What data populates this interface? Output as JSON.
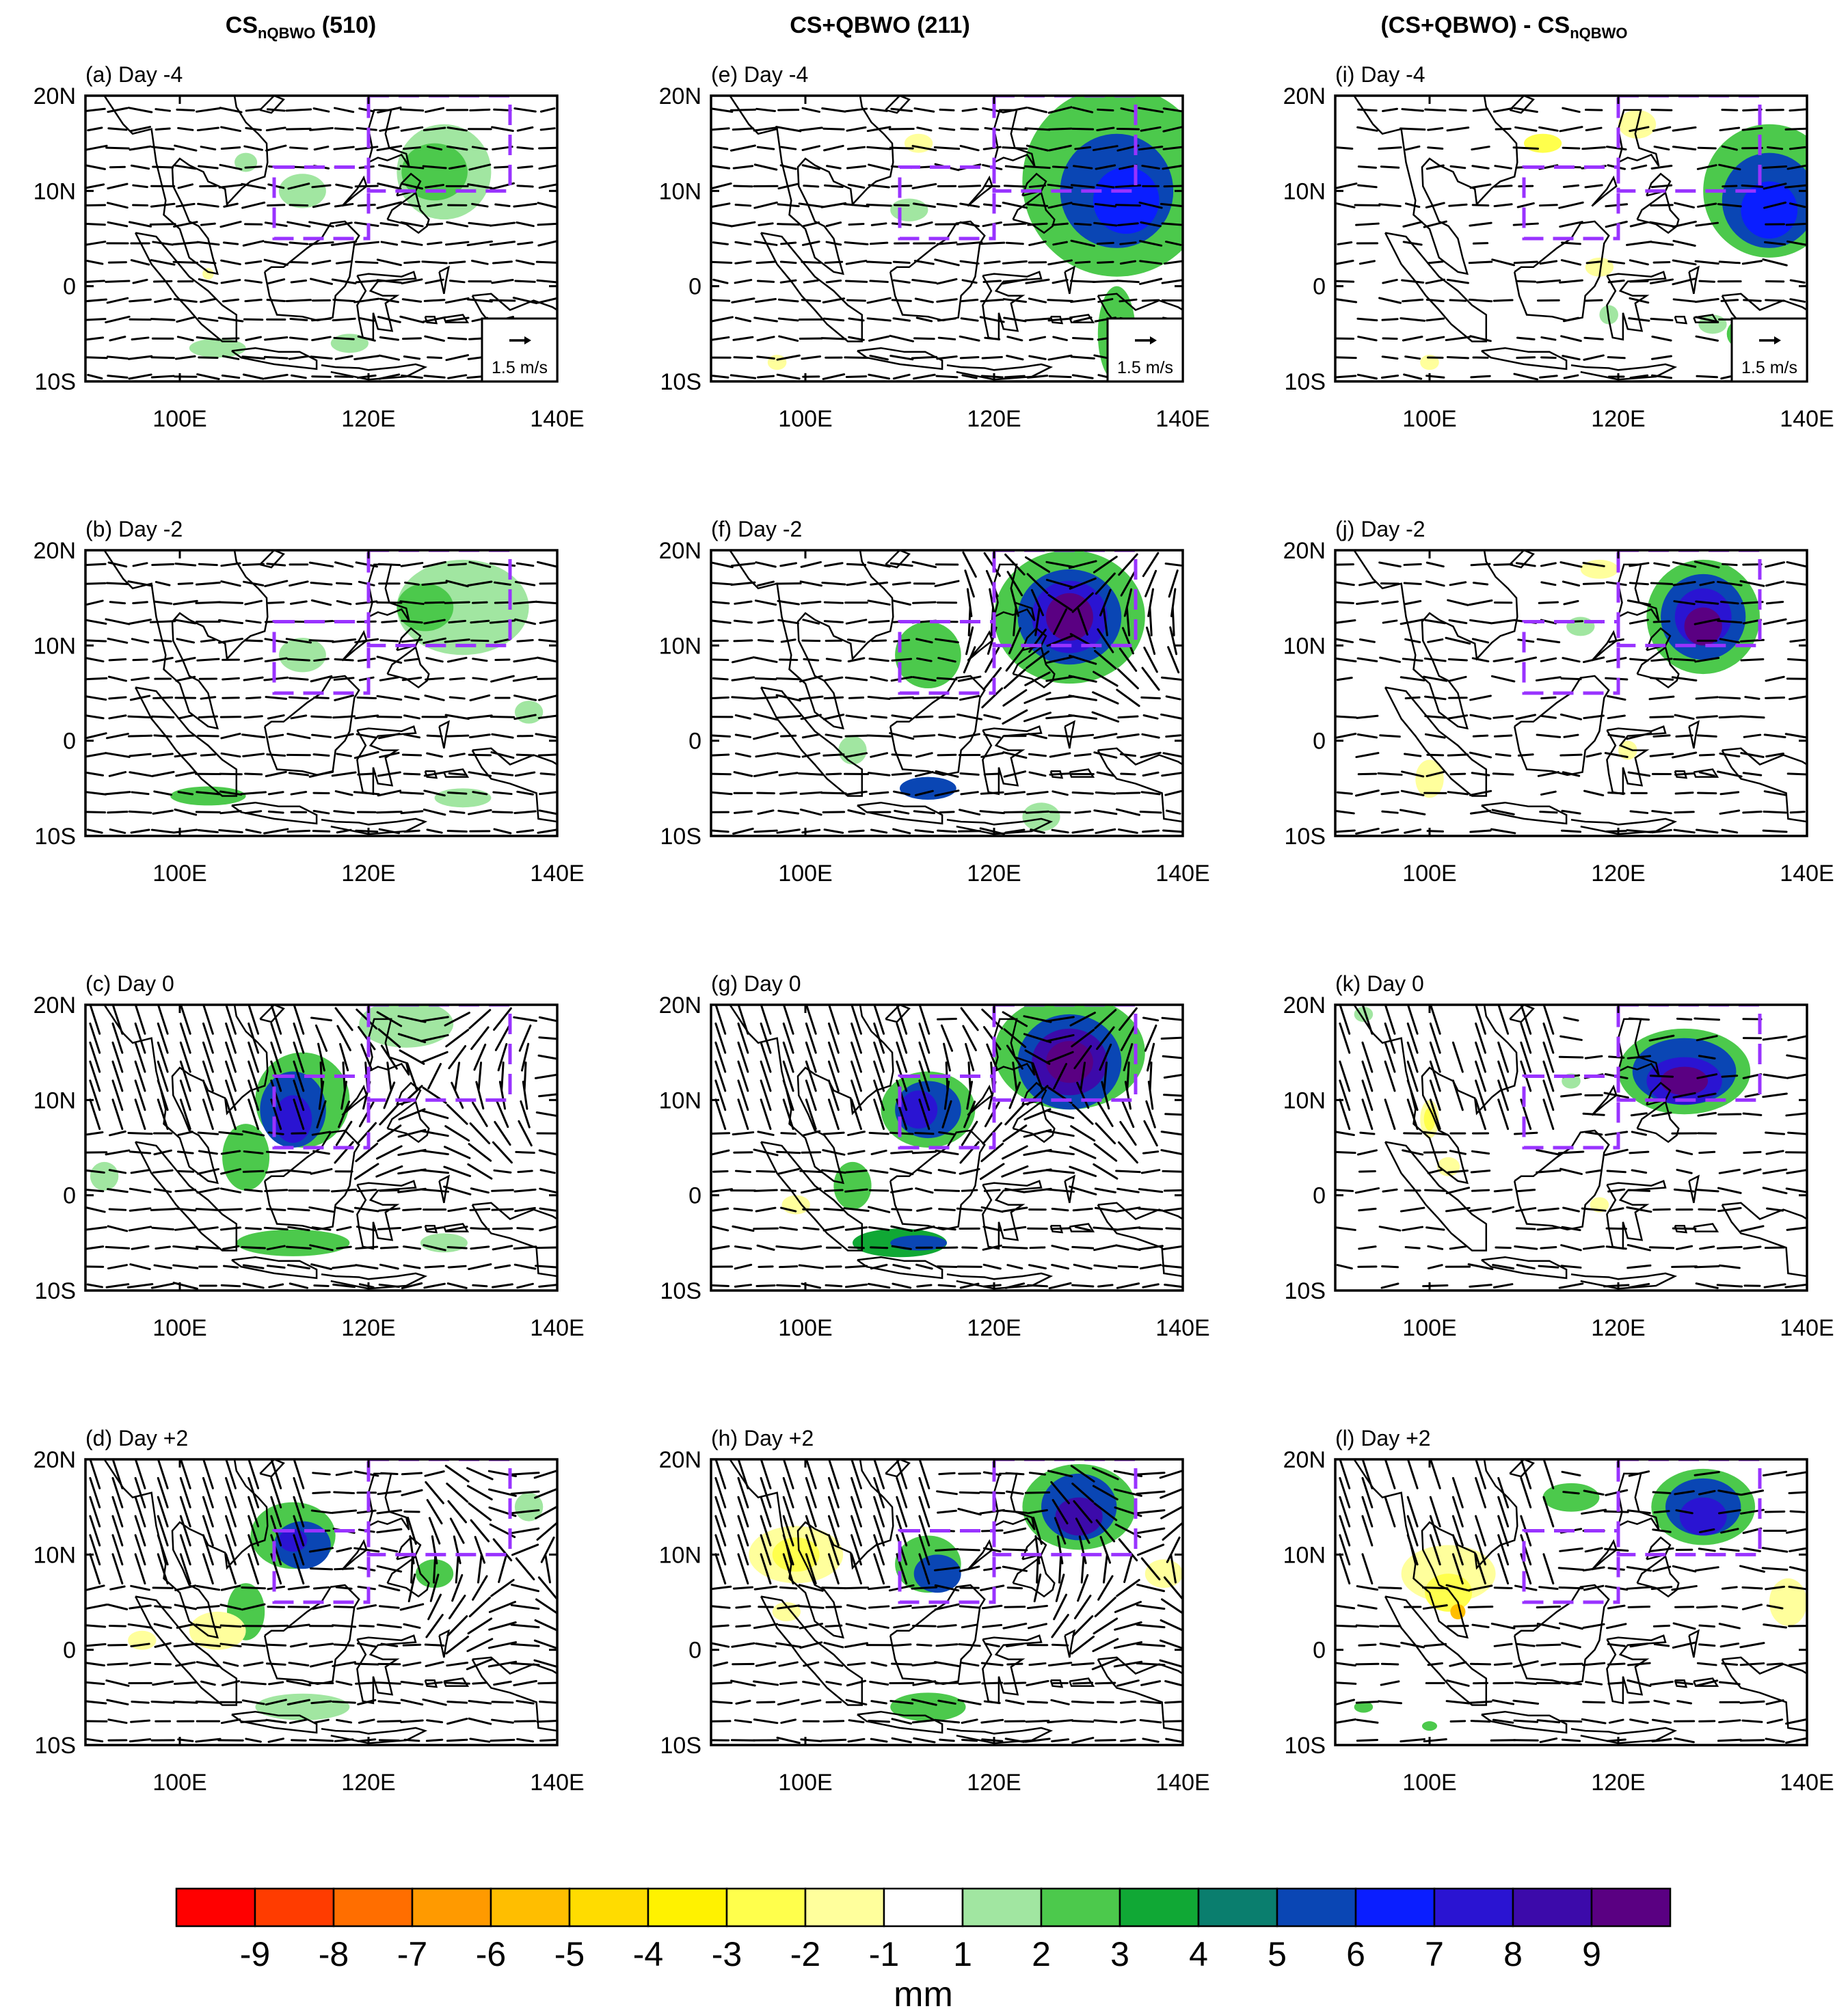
{
  "columns": [
    {
      "prefix": "CS",
      "subscript": "nQBWO",
      "suffix": " (510)"
    },
    {
      "prefix": "CS+QBWO (211)",
      "subscript": "",
      "suffix": ""
    },
    {
      "prefix": "(CS+QBWO) - CS",
      "subscript": "nQBWO",
      "suffix": ""
    }
  ],
  "panels": [
    {
      "label": "(a) Day -4",
      "col": 0,
      "row": 0
    },
    {
      "label": "(b) Day -2",
      "col": 0,
      "row": 1
    },
    {
      "label": "(c) Day 0",
      "col": 0,
      "row": 2
    },
    {
      "label": "(d) Day +2",
      "col": 0,
      "row": 3
    },
    {
      "label": "(e) Day -4",
      "col": 1,
      "row": 0
    },
    {
      "label": "(f) Day -2",
      "col": 1,
      "row": 1
    },
    {
      "label": "(g) Day 0",
      "col": 1,
      "row": 2
    },
    {
      "label": "(h) Day +2",
      "col": 1,
      "row": 3
    },
    {
      "label": "(i) Day -4",
      "col": 2,
      "row": 0
    },
    {
      "label": "(j) Day -2",
      "col": 2,
      "row": 1
    },
    {
      "label": "(k) Day 0",
      "col": 2,
      "row": 2
    },
    {
      "label": "(l) Day +2",
      "col": 2,
      "row": 3
    }
  ],
  "map": {
    "lon_range": [
      90,
      140
    ],
    "lat_range": [
      -10,
      20
    ],
    "lon_ticks": [
      "100E",
      "120E",
      "140E"
    ],
    "lon_tick_values": [
      100,
      120,
      140
    ],
    "lat_ticks": [
      "20N",
      "10N",
      "0",
      "10S"
    ],
    "lat_tick_values": [
      20,
      10,
      0,
      -10
    ],
    "boxes": [
      {
        "lon": [
          110,
          120
        ],
        "lat": [
          5,
          12.5
        ]
      },
      {
        "lon": [
          120,
          135
        ],
        "lat": [
          10,
          20
        ]
      }
    ],
    "reference_vector": "1.5 m/s"
  },
  "colorbar": {
    "unit": "mm",
    "tick_labels": [
      "-9",
      "-8",
      "-7",
      "-6",
      "-5",
      "-4",
      "-3",
      "-2",
      "-1",
      "1",
      "2",
      "3",
      "4",
      "5",
      "6",
      "7",
      "8",
      "9"
    ],
    "colors": [
      "#ff0000",
      "#ff3c00",
      "#ff6e00",
      "#ff9a00",
      "#ffbe00",
      "#ffdc00",
      "#fff200",
      "#ffff4c",
      "#ffff9c",
      "#ffffff",
      "#a1e6a1",
      "#4cc94c",
      "#10a835",
      "#0a7e6e",
      "#0a46b4",
      "#0a1eff",
      "#2a14d2",
      "#3c0aaa",
      "#5a0082"
    ]
  },
  "colors": {
    "box": "#9933ff",
    "coast": "#000000"
  }
}
